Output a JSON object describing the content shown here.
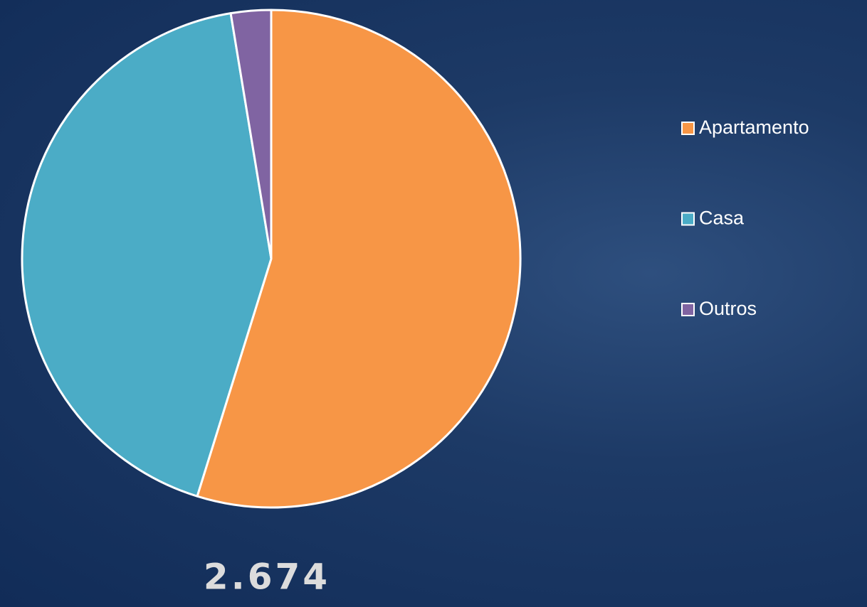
{
  "chart_data": {
    "type": "pie",
    "categories": [
      "Apartamento",
      "Casa",
      "Outros"
    ],
    "values": [
      54.8,
      42.6,
      2.6
    ],
    "colors": [
      "#f79646",
      "#4bacc6",
      "#8064a2"
    ],
    "legend": "right",
    "annotation": "2.674"
  }
}
